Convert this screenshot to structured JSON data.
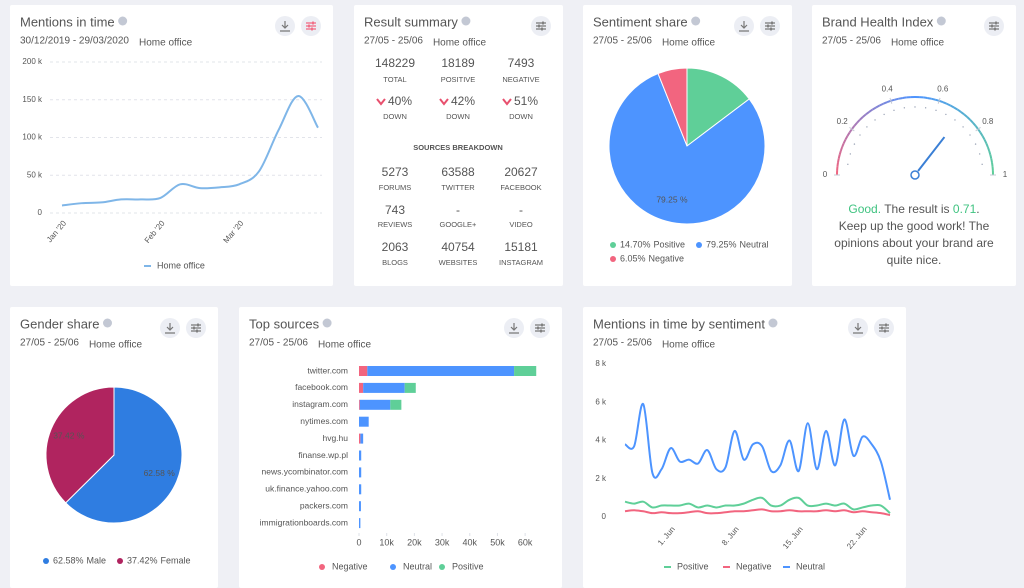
{
  "chart_data": [
    {
      "type": "line",
      "title": "Mentions in time",
      "date_range": "30/12/2019 - 29/03/2020",
      "project": "Home office",
      "categories": [
        "Jan '20",
        null,
        null,
        null,
        null,
        "Feb '20",
        null,
        null,
        null,
        "Mar '20",
        null,
        null,
        null,
        null
      ],
      "series": [
        {
          "name": "Home office",
          "color": "#7fb6e8",
          "values": [
            10000,
            13000,
            14000,
            18000,
            18000,
            20000,
            38000,
            33000,
            34000,
            38000,
            55000,
            110000,
            155000,
            113000
          ]
        }
      ],
      "ylim": [
        0,
        200000
      ],
      "yticks": [
        0,
        {
          "value": 50000,
          "label": "50 k"
        },
        {
          "value": 100000,
          "label": "100 k"
        },
        {
          "value": 150000,
          "label": "150 k"
        },
        {
          "value": 200000,
          "label": "200 k"
        }
      ],
      "grid": true
    },
    {
      "type": "pie",
      "title": "Sentiment share",
      "date_range": "27/05 - 25/06",
      "project": "Home office",
      "categories": [
        "Positive",
        "Neutral",
        "Negative"
      ],
      "values": [
        14.7,
        79.25,
        6.05
      ],
      "value_labels": [
        "14.70%",
        "79.25%",
        "6.05%"
      ],
      "slice_labels": [
        null,
        "79.25 %",
        null
      ],
      "colors": [
        "#5fcf98",
        "#4d94ff",
        "#f2657f"
      ]
    },
    {
      "type": "gauge",
      "title": "Brand Health Index",
      "date_range": "27/05 - 25/06",
      "project": "Home office",
      "value": 0.71,
      "lim": [
        0,
        1
      ],
      "ticks": [
        0,
        0.2,
        0.4,
        0.6,
        0.8,
        1
      ],
      "status": "Good.",
      "result_prefix": "The result is",
      "result_suffix": ".",
      "message": "Keep up the good work! The opinions about your brand are quite nice."
    },
    {
      "type": "pie",
      "title": "Gender share",
      "date_range": "27/05 - 25/06",
      "project": "Home office",
      "categories": [
        "Male",
        "Female"
      ],
      "values": [
        62.58,
        37.42
      ],
      "value_labels": [
        "62.58%",
        "37.42%"
      ],
      "slice_labels": [
        "62.58 %",
        "37.42 %"
      ],
      "colors": [
        "#2f7de1",
        "#b0245f"
      ]
    },
    {
      "type": "bar",
      "orientation": "horizontal",
      "stacked": true,
      "title": "Top sources",
      "date_range": "27/05 - 25/06",
      "project": "Home office",
      "categories": [
        "twitter.com",
        "facebook.com",
        "instagram.com",
        "nytimes.com",
        "hvg.hu",
        "finanse.wp.pl",
        "news.ycombinator.com",
        "uk.finance.yahoo.com",
        "packers.com",
        "immigrationboards.com"
      ],
      "series": [
        {
          "name": "Negative",
          "color": "#f2657f",
          "values": [
            3000,
            1500,
            300,
            0,
            500,
            0,
            0,
            0,
            0,
            0
          ]
        },
        {
          "name": "Neutral",
          "color": "#4d94ff",
          "values": [
            53000,
            15000,
            11000,
            3500,
            1000,
            800,
            800,
            800,
            700,
            500
          ]
        },
        {
          "name": "Positive",
          "color": "#5fcf98",
          "values": [
            8000,
            4000,
            4000,
            0,
            0,
            0,
            0,
            0,
            0,
            0
          ]
        }
      ],
      "xlim": [
        0,
        65000
      ],
      "xticks": [
        0,
        {
          "value": 10000,
          "label": "10k"
        },
        {
          "value": 20000,
          "label": "20k"
        },
        {
          "value": 30000,
          "label": "30k"
        },
        {
          "value": 40000,
          "label": "40k"
        },
        {
          "value": 50000,
          "label": "50k"
        },
        {
          "value": 60000,
          "label": "60k"
        }
      ]
    },
    {
      "type": "line",
      "title": "Mentions in time by sentiment",
      "date_range": "27/05 - 25/06",
      "project": "Home office",
      "categories": [
        null,
        null,
        null,
        null,
        null,
        "1. Jun",
        null,
        null,
        null,
        null,
        null,
        null,
        "8. Jun",
        null,
        null,
        null,
        null,
        null,
        null,
        "15. Jun",
        null,
        null,
        null,
        null,
        null,
        null,
        "22. Jun",
        null,
        null,
        null
      ],
      "series": [
        {
          "name": "Positive",
          "color": "#5fcf98",
          "values": [
            800,
            700,
            800,
            500,
            600,
            600,
            600,
            700,
            500,
            600,
            500,
            600,
            600,
            700,
            900,
            1000,
            600,
            600,
            900,
            1000,
            600,
            600,
            700,
            600,
            700,
            400,
            500,
            600,
            600,
            200
          ]
        },
        {
          "name": "Negative",
          "color": "#f2657f",
          "values": [
            300,
            350,
            300,
            200,
            250,
            200,
            200,
            250,
            300,
            200,
            200,
            250,
            300,
            300,
            350,
            400,
            300,
            300,
            350,
            300,
            300,
            300,
            350,
            300,
            350,
            250,
            300,
            250,
            200,
            100
          ]
        },
        {
          "name": "Neutral",
          "color": "#4d94ff",
          "values": [
            3800,
            3700,
            5900,
            2300,
            2500,
            3600,
            2900,
            3000,
            2800,
            3500,
            2500,
            2600,
            4500,
            3000,
            3800,
            3700,
            2400,
            2700,
            4000,
            2400,
            4900,
            2500,
            4500,
            2700,
            5100,
            3200,
            4200,
            3800,
            2900,
            900
          ]
        }
      ],
      "ylim": [
        0,
        8000
      ],
      "yticks": [
        0,
        {
          "value": 2000,
          "label": "2 k"
        },
        {
          "value": 4000,
          "label": "4 k"
        },
        {
          "value": 6000,
          "label": "6 k"
        },
        {
          "value": 8000,
          "label": "8 k"
        }
      ],
      "grid": false
    }
  ],
  "result_summary": {
    "title": "Result summary",
    "date_range": "27/05 - 25/06",
    "project": "Home office",
    "stats": [
      {
        "value": "148229",
        "label": "TOTAL"
      },
      {
        "value": "18189",
        "label": "POSITIVE"
      },
      {
        "value": "7493",
        "label": "NEGATIVE"
      }
    ],
    "changes": [
      {
        "value": "40%",
        "label": "DOWN"
      },
      {
        "value": "42%",
        "label": "DOWN"
      },
      {
        "value": "51%",
        "label": "DOWN"
      }
    ],
    "breakdown_title": "SOURCES BREAKDOWN",
    "sources": [
      {
        "value": "5273",
        "label": "FORUMS"
      },
      {
        "value": "63588",
        "label": "TWITTER"
      },
      {
        "value": "20627",
        "label": "FACEBOOK"
      },
      {
        "value": "743",
        "label": "REVIEWS"
      },
      {
        "value": "-",
        "label": "GOOGLE+"
      },
      {
        "value": "-",
        "label": "VIDEO"
      },
      {
        "value": "2063",
        "label": "BLOGS"
      },
      {
        "value": "40754",
        "label": "WEBSITES"
      },
      {
        "value": "15181",
        "label": "INSTAGRAM"
      }
    ]
  }
}
